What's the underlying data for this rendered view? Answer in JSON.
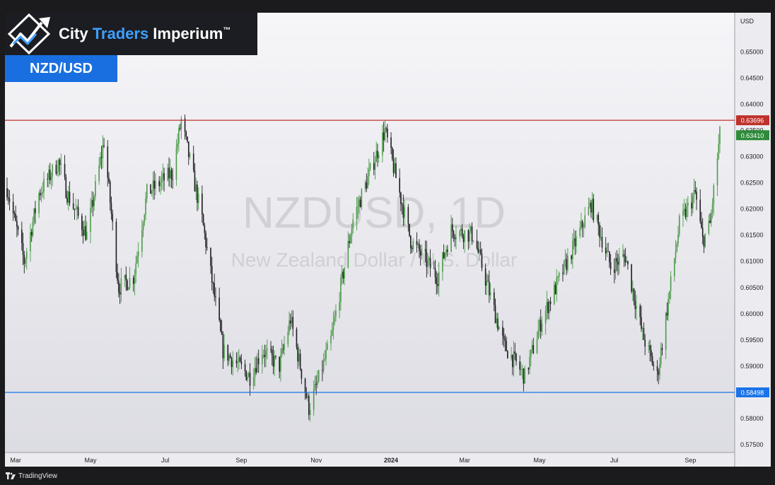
{
  "brand": {
    "name_part1": "City ",
    "name_part2": "Traders",
    "name_part3": " Imperium",
    "trademark": "™"
  },
  "pair_badge": "NZD/USD",
  "footer": {
    "platform": "TradingView"
  },
  "watermark": {
    "symbol": "NZDUSD, 1D",
    "description": "New Zealand Dollar / U.S. Dollar"
  },
  "colors": {
    "background": "#e9e9ee",
    "bull_candle": "#4e9a4a",
    "bear_candle": "#1e1e22",
    "resistance": "#c0312b",
    "support": "#1a73e8",
    "last_price": "#2e8b3a",
    "brand_accent": "#3ea0ff"
  },
  "chart_data": {
    "type": "candlestick",
    "timeframe": "1D",
    "currency": "USD",
    "y_axis_label": "USD",
    "ylim": [
      0.5735,
      0.6575
    ],
    "y_ticks": [
      "0.65000",
      "0.64500",
      "0.64000",
      "0.63500",
      "0.63000",
      "0.62500",
      "0.62000",
      "0.61500",
      "0.61000",
      "0.60500",
      "0.60000",
      "0.59500",
      "0.59000",
      "0.58500",
      "0.58000",
      "0.57500"
    ],
    "x_ticks": [
      {
        "label": "Mar",
        "date": "2023-03-01",
        "bold": false
      },
      {
        "label": "May",
        "date": "2023-05-01",
        "bold": false
      },
      {
        "label": "Jul",
        "date": "2023-07-01",
        "bold": false
      },
      {
        "label": "Sep",
        "date": "2023-09-01",
        "bold": false
      },
      {
        "label": "Nov",
        "date": "2023-11-01",
        "bold": false
      },
      {
        "label": "2024",
        "date": "2024-01-01",
        "bold": true
      },
      {
        "label": "Mar",
        "date": "2024-03-01",
        "bold": false
      },
      {
        "label": "May",
        "date": "2024-05-01",
        "bold": false
      },
      {
        "label": "Jul",
        "date": "2024-07-01",
        "bold": false
      },
      {
        "label": "Sep",
        "date": "2024-09-01",
        "bold": false
      }
    ],
    "date_range": [
      "2023-02-22",
      "2024-09-25"
    ],
    "horizontal_lines": [
      {
        "value": 0.63696,
        "label": "0.63696",
        "role": "resistance"
      },
      {
        "value": 0.58498,
        "label": "0.58498",
        "role": "support"
      }
    ],
    "last_price": {
      "value": 0.6341,
      "label": "0.63410"
    },
    "price_path": [
      [
        "2023-02-22",
        0.624
      ],
      [
        "2023-03-08",
        0.61
      ],
      [
        "2023-03-20",
        0.623
      ],
      [
        "2023-04-05",
        0.629
      ],
      [
        "2023-04-12",
        0.623
      ],
      [
        "2023-04-28",
        0.615
      ],
      [
        "2023-05-12",
        0.633
      ],
      [
        "2023-05-24",
        0.605
      ],
      [
        "2023-06-05",
        0.607
      ],
      [
        "2023-06-16",
        0.623
      ],
      [
        "2023-07-07",
        0.627
      ],
      [
        "2023-07-14",
        0.637
      ],
      [
        "2023-07-31",
        0.618
      ],
      [
        "2023-08-17",
        0.593
      ],
      [
        "2023-09-08",
        0.588
      ],
      [
        "2023-09-18",
        0.593
      ],
      [
        "2023-10-02",
        0.59
      ],
      [
        "2023-10-11",
        0.599
      ],
      [
        "2023-10-26",
        0.582
      ],
      [
        "2023-11-01",
        0.586
      ],
      [
        "2023-11-13",
        0.595
      ],
      [
        "2023-12-01",
        0.618
      ],
      [
        "2023-12-27",
        0.635
      ],
      [
        "2024-01-17",
        0.614
      ],
      [
        "2024-02-08",
        0.607
      ],
      [
        "2024-02-19",
        0.616
      ],
      [
        "2024-03-08",
        0.615
      ],
      [
        "2024-04-02",
        0.594
      ],
      [
        "2024-04-19",
        0.588
      ],
      [
        "2024-05-03",
        0.599
      ],
      [
        "2024-05-31",
        0.614
      ],
      [
        "2024-06-12",
        0.621
      ],
      [
        "2024-06-28",
        0.609
      ],
      [
        "2024-07-10",
        0.611
      ],
      [
        "2024-07-24",
        0.596
      ],
      [
        "2024-08-05",
        0.588
      ],
      [
        "2024-08-23",
        0.617
      ],
      [
        "2024-09-05",
        0.623
      ],
      [
        "2024-09-11",
        0.614
      ],
      [
        "2024-09-17",
        0.617
      ],
      [
        "2024-09-25",
        0.6341
      ]
    ]
  }
}
